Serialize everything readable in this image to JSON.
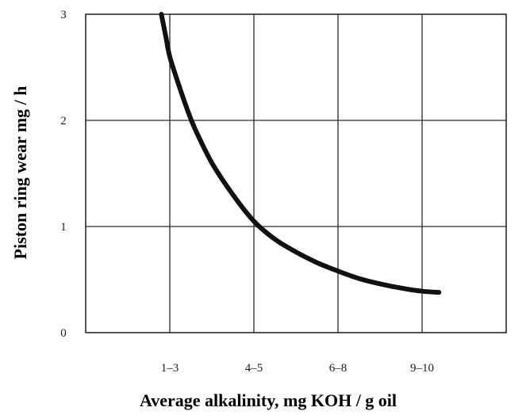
{
  "chart_data": {
    "type": "line",
    "title": "",
    "xlabel": "Average alkalinity, mg KOH / g oil",
    "ylabel": "Piston ring wear mg / h",
    "x_tick_labels": [
      "1–3",
      "4–5",
      "6–8",
      "9–10"
    ],
    "y_tick_labels": [
      "0",
      "1",
      "2",
      "3"
    ],
    "xlim": [
      -1,
      4
    ],
    "ylim": [
      0,
      3
    ],
    "grid": true,
    "legend": "none",
    "series": [
      {
        "x": [
          -0.1,
          -0.05,
          0.0,
          0.1,
          0.2,
          0.3,
          0.5,
          0.75,
          1.0,
          1.25,
          1.5,
          1.75,
          2.0,
          2.25,
          2.5,
          2.75,
          3.0,
          3.2
        ],
        "values": [
          3.0,
          2.8,
          2.6,
          2.35,
          2.12,
          1.92,
          1.6,
          1.3,
          1.05,
          0.88,
          0.76,
          0.66,
          0.58,
          0.51,
          0.46,
          0.42,
          0.39,
          0.38
        ]
      }
    ],
    "colors": {
      "line": "#111111",
      "grid": "#2a2a2a"
    }
  }
}
